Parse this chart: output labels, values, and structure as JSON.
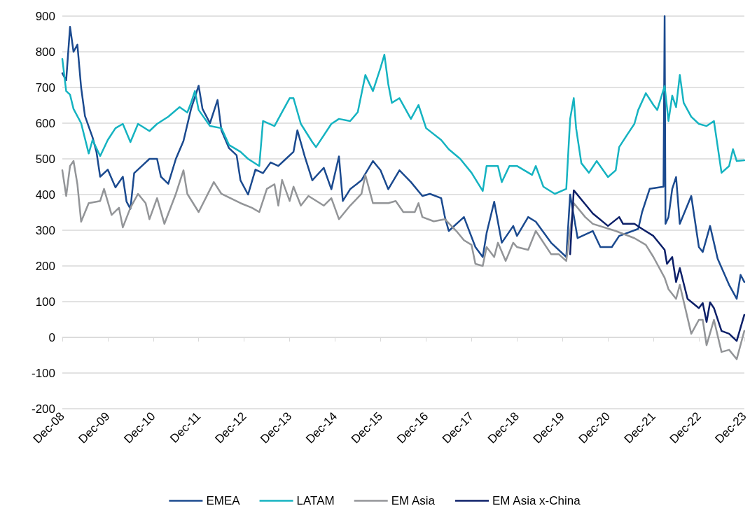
{
  "chart_data": {
    "type": "line",
    "xlim": [
      "2008-12",
      "2023-12"
    ],
    "ylim": [
      -200,
      900
    ],
    "xticks": [
      {
        "value": "2008-12",
        "label": "Dec-08"
      },
      {
        "value": "2009-12",
        "label": "Dec-09"
      },
      {
        "value": "2010-12",
        "label": "Dec-10"
      },
      {
        "value": "2011-12",
        "label": "Dec-11"
      },
      {
        "value": "2012-12",
        "label": "Dec-12"
      },
      {
        "value": "2013-12",
        "label": "Dec-13"
      },
      {
        "value": "2014-12",
        "label": "Dec-14"
      },
      {
        "value": "2015-12",
        "label": "Dec-15"
      },
      {
        "value": "2016-12",
        "label": "Dec-16"
      },
      {
        "value": "2017-12",
        "label": "Dec-17"
      },
      {
        "value": "2018-12",
        "label": "Dec-18"
      },
      {
        "value": "2019-12",
        "label": "Dec-19"
      },
      {
        "value": "2020-12",
        "label": "Dec-20"
      },
      {
        "value": "2021-12",
        "label": "Dec-21"
      },
      {
        "value": "2022-12",
        "label": "Dec-22"
      },
      {
        "value": "2023-12",
        "label": "Dec-23"
      }
    ],
    "yticks": [
      -200,
      -100,
      0,
      100,
      200,
      300,
      400,
      500,
      600,
      700,
      800,
      900
    ],
    "grid": "y",
    "legend": "bottom",
    "marker": "none",
    "line_style": "solid",
    "series": [
      {
        "name": "EMEA",
        "color": "#1b4a8f",
        "x": [
          "2008-12",
          "2009-01",
          "2009-02",
          "2009-03",
          "2009-04",
          "2009-05",
          "2009-06",
          "2009-08",
          "2009-09",
          "2009-10",
          "2009-12",
          "2010-02",
          "2010-04",
          "2010-05",
          "2010-06",
          "2010-07",
          "2010-09",
          "2010-11",
          "2011-01",
          "2011-02",
          "2011-04",
          "2011-06",
          "2011-08",
          "2011-10",
          "2011-12",
          "2012-01",
          "2012-03",
          "2012-05",
          "2012-06",
          "2012-08",
          "2012-10",
          "2012-11",
          "2013-01",
          "2013-03",
          "2013-05",
          "2013-07",
          "2013-09",
          "2013-11",
          "2014-01",
          "2014-02",
          "2014-04",
          "2014-06",
          "2014-09",
          "2014-11",
          "2015-01",
          "2015-02",
          "2015-04",
          "2015-07",
          "2015-10",
          "2015-12",
          "2016-02",
          "2016-05",
          "2016-08",
          "2016-11",
          "2017-01",
          "2017-04",
          "2017-05",
          "2017-06",
          "2017-10",
          "2018-01",
          "2018-03",
          "2018-04",
          "2018-06",
          "2018-08",
          "2018-11",
          "2018-12",
          "2019-03",
          "2019-05",
          "2019-09",
          "2020-01",
          "2020-02",
          "2020-04",
          "2020-08",
          "2020-10",
          "2021-01",
          "2021-03",
          "2021-08",
          "2021-09",
          "2021-11",
          "2022-02-20",
          "2022-03",
          "2022-03-08",
          "2022-04",
          "2022-05",
          "2022-06",
          "2022-07",
          "2022-10",
          "2022-12",
          "2023-01",
          "2023-03",
          "2023-05",
          "2023-08",
          "2023-10",
          "2023-11",
          "2023-12"
        ],
        "values": [
          740,
          720,
          870,
          800,
          820,
          700,
          620,
          560,
          520,
          450,
          470,
          420,
          450,
          380,
          360,
          460,
          480,
          500,
          500,
          450,
          430,
          500,
          550,
          640,
          705,
          640,
          600,
          665,
          580,
          530,
          510,
          440,
          400,
          470,
          460,
          490,
          480,
          500,
          520,
          580,
          507,
          440,
          475,
          415,
          507,
          382,
          415,
          440,
          494,
          468,
          415,
          468,
          435,
          396,
          402,
          390,
          337,
          298,
          337,
          253,
          225,
          292,
          380,
          265,
          312,
          284,
          337,
          324,
          265,
          225,
          400,
          278,
          298,
          253,
          253,
          284,
          304,
          351,
          416,
          422,
          900,
          318,
          337,
          416,
          449,
          318,
          396,
          253,
          239,
          312,
          220,
          147,
          108,
          175,
          155
        ]
      },
      {
        "name": "LATAM",
        "color": "#15b3c1",
        "x": [
          "2008-12",
          "2009-01",
          "2009-02",
          "2009-03",
          "2009-05",
          "2009-07",
          "2009-08",
          "2009-10",
          "2009-12",
          "2010-02",
          "2010-04",
          "2010-06",
          "2010-08",
          "2010-11",
          "2011-01",
          "2011-04",
          "2011-07",
          "2011-09",
          "2011-10",
          "2011-11",
          "2011-12",
          "2012-03",
          "2012-06",
          "2012-08",
          "2012-11",
          "2013-01",
          "2013-04",
          "2013-05",
          "2013-08",
          "2013-10",
          "2013-12",
          "2014-01",
          "2014-03",
          "2014-06",
          "2014-07",
          "2014-11",
          "2015-01",
          "2015-04",
          "2015-06",
          "2015-08",
          "2015-10",
          "2015-12",
          "2016-01",
          "2016-02",
          "2016-03",
          "2016-05",
          "2016-08",
          "2016-10",
          "2016-12",
          "2017-04",
          "2017-06",
          "2017-09",
          "2017-12",
          "2018-03",
          "2018-04",
          "2018-07",
          "2018-08",
          "2018-10",
          "2018-12",
          "2019-04",
          "2019-05",
          "2019-07",
          "2019-10",
          "2020-01",
          "2020-02",
          "2020-03",
          "2020-03-20",
          "2020-05",
          "2020-07",
          "2020-09",
          "2020-12",
          "2021-02",
          "2021-03",
          "2021-05",
          "2021-07",
          "2021-08",
          "2021-10",
          "2021-12",
          "2022-01",
          "2022-03",
          "2022-04",
          "2022-05",
          "2022-06",
          "2022-07",
          "2022-08",
          "2022-10",
          "2022-12",
          "2023-02",
          "2023-04",
          "2023-06",
          "2023-08",
          "2023-09",
          "2023-10",
          "2023-12"
        ],
        "values": [
          780,
          690,
          680,
          640,
          600,
          515,
          553,
          508,
          553,
          586,
          598,
          547,
          598,
          578,
          598,
          618,
          645,
          630,
          657,
          690,
          637,
          592,
          586,
          539,
          520,
          500,
          480,
          606,
          592,
          631,
          670,
          670,
          598,
          547,
          533,
          598,
          612,
          606,
          631,
          735,
          690,
          755,
          792,
          710,
          657,
          670,
          612,
          651,
          586,
          553,
          527,
          500,
          461,
          410,
          480,
          480,
          435,
          480,
          480,
          455,
          480,
          422,
          402,
          416,
          612,
          670,
          586,
          488,
          461,
          494,
          449,
          468,
          533,
          566,
          598,
          637,
          684,
          651,
          637,
          704,
          606,
          677,
          645,
          735,
          657,
          618,
          598,
          592,
          606,
          461,
          480,
          527,
          494,
          496
        ]
      },
      {
        "name": "EM Asia",
        "color": "#939598",
        "x": [
          "2008-12",
          "2009-01",
          "2009-02",
          "2009-03",
          "2009-04",
          "2009-05",
          "2009-07",
          "2009-10",
          "2009-11",
          "2010-01",
          "2010-03",
          "2010-04",
          "2010-06",
          "2010-08",
          "2010-10",
          "2010-11",
          "2011-01",
          "2011-03",
          "2011-06",
          "2011-08",
          "2011-09",
          "2011-12",
          "2012-04",
          "2012-06",
          "2012-11",
          "2013-02",
          "2013-04",
          "2013-06",
          "2013-08",
          "2013-09",
          "2013-10",
          "2013-12",
          "2014-01",
          "2014-03",
          "2014-05",
          "2014-09",
          "2014-11",
          "2015-01",
          "2015-04",
          "2015-07",
          "2015-08",
          "2015-10",
          "2016-02",
          "2016-04",
          "2016-06",
          "2016-09",
          "2016-10",
          "2016-11",
          "2017-02",
          "2017-05",
          "2017-08",
          "2017-10",
          "2017-12",
          "2018-01",
          "2018-03",
          "2018-04",
          "2018-06",
          "2018-07",
          "2018-09",
          "2018-11",
          "2018-12",
          "2019-03",
          "2019-05",
          "2019-09",
          "2019-11",
          "2020-01",
          "2020-03",
          "2020-06",
          "2020-08",
          "2021-02",
          "2021-07",
          "2021-10",
          "2021-12",
          "2022-03",
          "2022-04",
          "2022-06",
          "2022-07",
          "2022-10",
          "2022-12",
          "2023-01",
          "2023-02",
          "2023-04",
          "2023-06",
          "2023-08",
          "2023-10",
          "2023-12"
        ],
        "values": [
          468,
          396,
          480,
          494,
          429,
          324,
          376,
          382,
          416,
          343,
          363,
          308,
          363,
          402,
          376,
          331,
          390,
          318,
          402,
          468,
          402,
          351,
          435,
          402,
          376,
          363,
          351,
          416,
          429,
          369,
          441,
          382,
          422,
          369,
          396,
          369,
          390,
          331,
          369,
          402,
          455,
          376,
          376,
          382,
          351,
          351,
          376,
          337,
          325,
          331,
          298,
          272,
          259,
          206,
          200,
          253,
          225,
          265,
          214,
          265,
          253,
          245,
          298,
          233,
          233,
          214,
          376,
          337,
          318,
          298,
          278,
          259,
          225,
          167,
          135,
          108,
          147,
          10,
          49,
          49,
          -22,
          49,
          -41,
          -35,
          -61,
          18
        ]
      },
      {
        "name": "EM Asia x-China",
        "color": "#0c1f68",
        "x": [
          "2020-02",
          "2020-03",
          "2020-06",
          "2020-08",
          "2020-12",
          "2021-03",
          "2021-04",
          "2021-07",
          "2021-09",
          "2021-12",
          "2022-03",
          "2022-03-20",
          "2022-05",
          "2022-06",
          "2022-07",
          "2022-09",
          "2022-12",
          "2023-01",
          "2023-02",
          "2023-03",
          "2023-04",
          "2023-06",
          "2023-08",
          "2023-10",
          "2023-12"
        ],
        "values": [
          233,
          412,
          373,
          347,
          312,
          337,
          318,
          318,
          304,
          284,
          245,
          206,
          225,
          155,
          194,
          108,
          82,
          96,
          43,
          98,
          82,
          18,
          10,
          -10,
          63
        ]
      }
    ]
  }
}
